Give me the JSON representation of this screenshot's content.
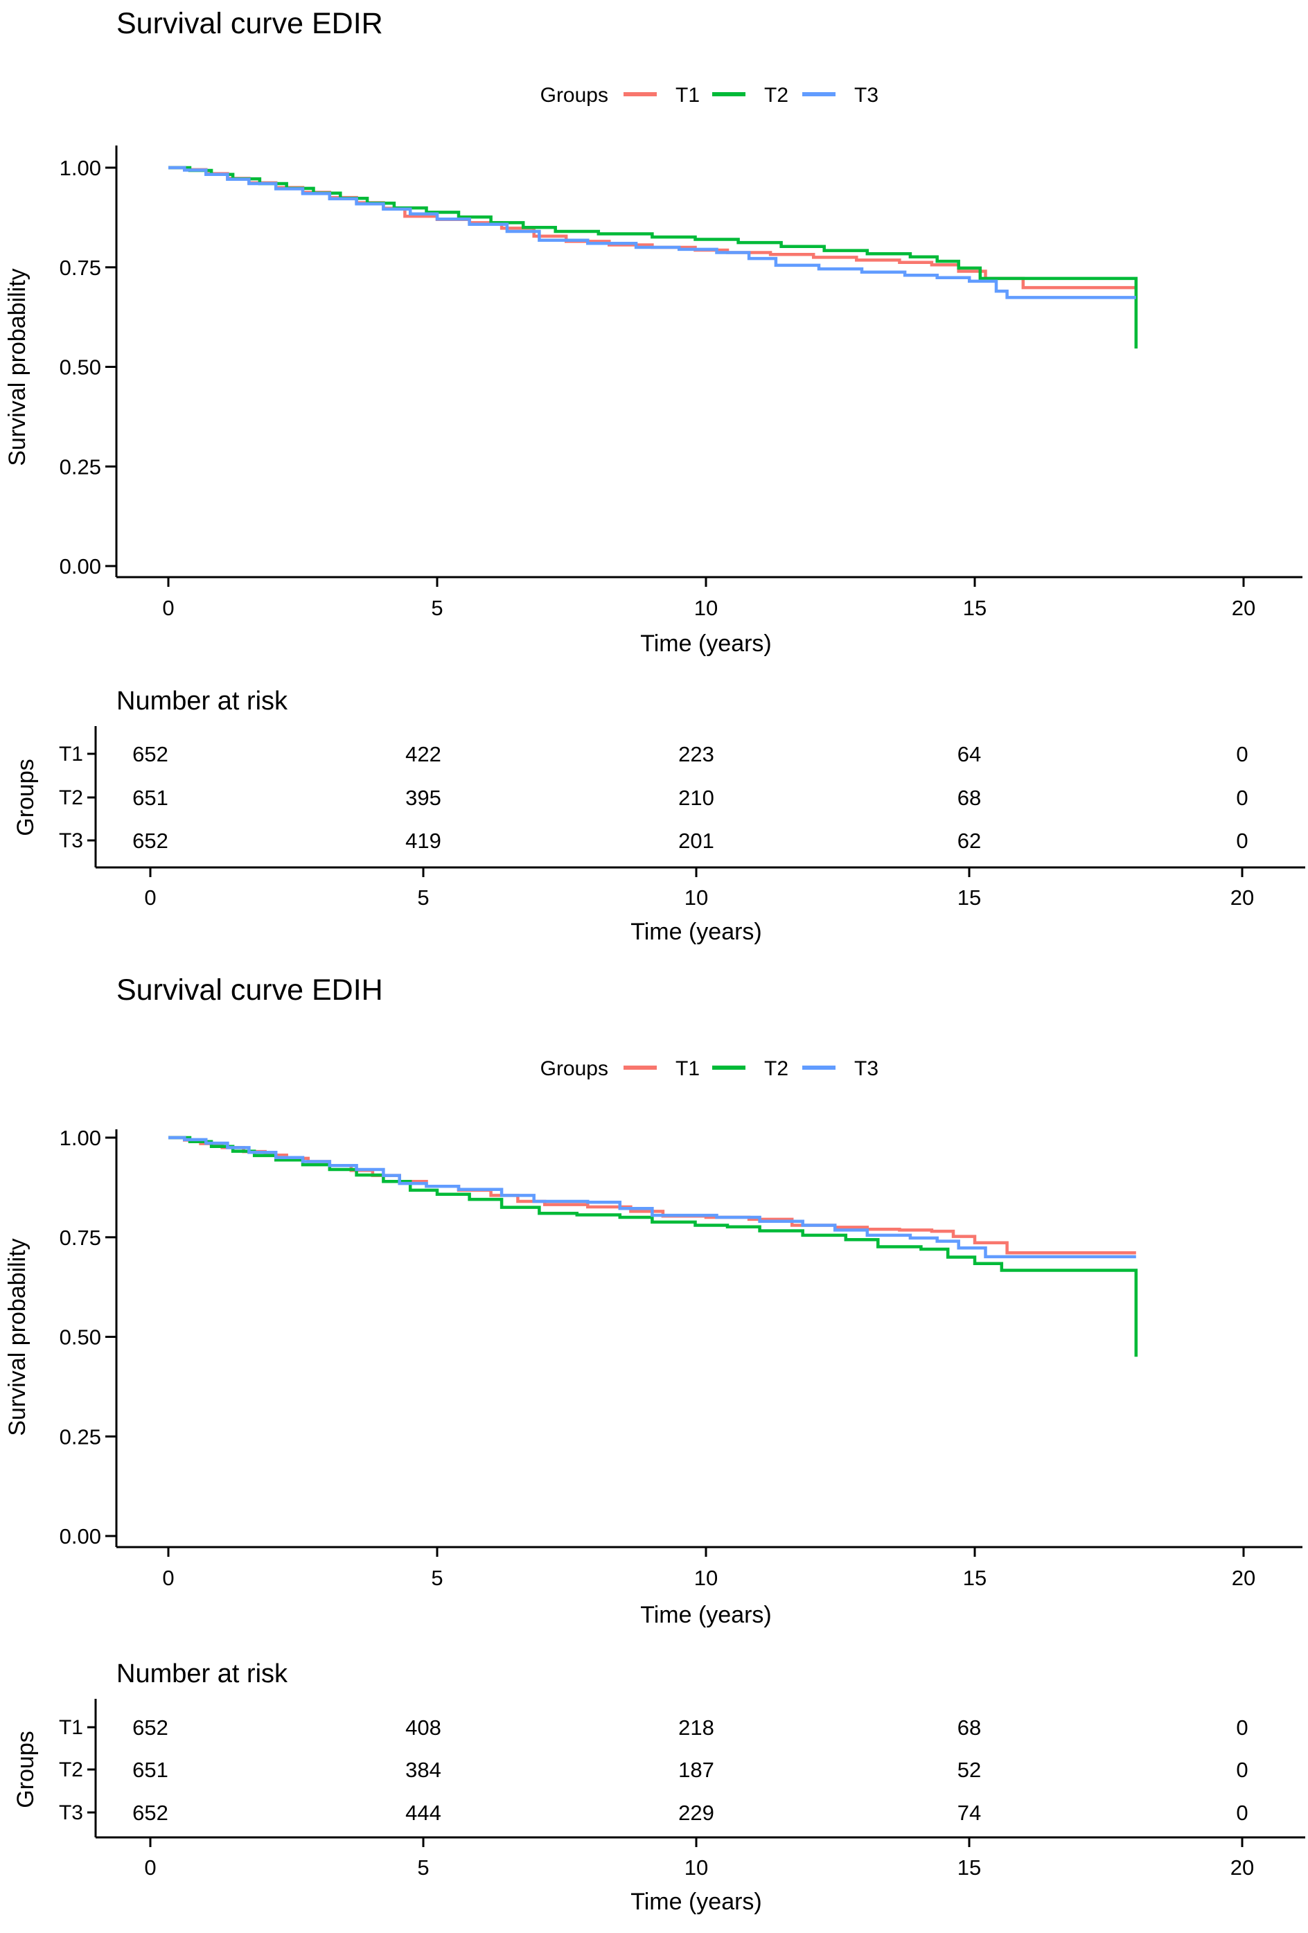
{
  "colors": {
    "t1": "#F8766D",
    "t2": "#00BA38",
    "t3": "#619CFF",
    "axis": "#000000",
    "text": "#000000"
  },
  "chart_data": [
    {
      "type": "line",
      "title": "Survival curve EDIR",
      "legend_title": "Groups",
      "legend_position": "top",
      "xlabel": "Time (years)",
      "ylabel": "Survival probability",
      "xlim": [
        0,
        20
      ],
      "ylim": [
        0,
        1
      ],
      "grid": false,
      "xticks": [
        "0",
        "5",
        "10",
        "15",
        "20"
      ],
      "yticks": [
        "1.00",
        "0.75",
        "0.50",
        "0.25",
        "0.00"
      ],
      "series": [
        {
          "name": "T1",
          "color": "#F8766D",
          "points": [
            [
              0,
              1
            ],
            [
              0.3,
              0.995
            ],
            [
              0.7,
              0.985
            ],
            [
              1.1,
              0.973
            ],
            [
              1.5,
              0.962
            ],
            [
              2,
              0.95
            ],
            [
              2.5,
              0.938
            ],
            [
              3,
              0.925
            ],
            [
              3.5,
              0.912
            ],
            [
              4,
              0.898
            ],
            [
              4.4,
              0.878
            ],
            [
              5,
              0.87
            ],
            [
              5.6,
              0.862
            ],
            [
              6.2,
              0.848
            ],
            [
              6.8,
              0.828
            ],
            [
              7.4,
              0.815
            ],
            [
              8.2,
              0.806
            ],
            [
              9,
              0.8
            ],
            [
              9.8,
              0.793
            ],
            [
              10.4,
              0.787
            ],
            [
              11.2,
              0.782
            ],
            [
              12,
              0.775
            ],
            [
              12.8,
              0.768
            ],
            [
              13.6,
              0.762
            ],
            [
              14.2,
              0.756
            ],
            [
              14.7,
              0.74
            ],
            [
              15.2,
              0.722
            ],
            [
              15.9,
              0.699
            ],
            [
              18,
              0.699
            ]
          ]
        },
        {
          "name": "T2",
          "color": "#00BA38",
          "points": [
            [
              0,
              1
            ],
            [
              0.4,
              0.993
            ],
            [
              0.8,
              0.983
            ],
            [
              1.2,
              0.972
            ],
            [
              1.7,
              0.96
            ],
            [
              2.2,
              0.948
            ],
            [
              2.7,
              0.936
            ],
            [
              3.2,
              0.923
            ],
            [
              3.7,
              0.911
            ],
            [
              4.2,
              0.899
            ],
            [
              4.8,
              0.888
            ],
            [
              5.4,
              0.876
            ],
            [
              6,
              0.862
            ],
            [
              6.6,
              0.85
            ],
            [
              7.2,
              0.84
            ],
            [
              8,
              0.834
            ],
            [
              9,
              0.826
            ],
            [
              9.8,
              0.82
            ],
            [
              10.6,
              0.812
            ],
            [
              11.4,
              0.802
            ],
            [
              12.2,
              0.792
            ],
            [
              13,
              0.784
            ],
            [
              13.8,
              0.776
            ],
            [
              14.3,
              0.765
            ],
            [
              14.7,
              0.748
            ],
            [
              15.1,
              0.722
            ],
            [
              18,
              0.722
            ],
            [
              18,
              0.546
            ]
          ]
        },
        {
          "name": "T3",
          "color": "#619CFF",
          "points": [
            [
              0,
              1
            ],
            [
              0.3,
              0.994
            ],
            [
              0.7,
              0.983
            ],
            [
              1.1,
              0.971
            ],
            [
              1.5,
              0.96
            ],
            [
              2,
              0.947
            ],
            [
              2.5,
              0.935
            ],
            [
              3,
              0.922
            ],
            [
              3.5,
              0.909
            ],
            [
              4,
              0.896
            ],
            [
              4.5,
              0.884
            ],
            [
              5,
              0.871
            ],
            [
              5.6,
              0.858
            ],
            [
              6.3,
              0.84
            ],
            [
              6.9,
              0.818
            ],
            [
              7.8,
              0.81
            ],
            [
              8.7,
              0.8
            ],
            [
              9.5,
              0.795
            ],
            [
              10.2,
              0.787
            ],
            [
              10.8,
              0.772
            ],
            [
              11.3,
              0.755
            ],
            [
              12.1,
              0.746
            ],
            [
              12.9,
              0.738
            ],
            [
              13.7,
              0.73
            ],
            [
              14.3,
              0.724
            ],
            [
              14.9,
              0.715
            ],
            [
              15.4,
              0.69
            ],
            [
              15.6,
              0.674
            ],
            [
              18,
              0.674
            ]
          ]
        }
      ],
      "risk_table": {
        "title": "Number at risk",
        "ylabel": "Groups",
        "xlabel": "Time (years)",
        "times": [
          "0",
          "5",
          "10",
          "15",
          "20"
        ],
        "rows": [
          {
            "label": "T1",
            "color": "#F8766D",
            "values": [
              652,
              422,
              223,
              64,
              0
            ]
          },
          {
            "label": "T2",
            "color": "#00BA38",
            "values": [
              651,
              395,
              210,
              68,
              0
            ]
          },
          {
            "label": "T3",
            "color": "#619CFF",
            "values": [
              652,
              419,
              201,
              62,
              0
            ]
          }
        ]
      }
    },
    {
      "type": "line",
      "title": "Survival curve EDIH",
      "legend_title": "Groups",
      "legend_position": "top",
      "xlabel": "Time (years)",
      "ylabel": "Survival probability",
      "xlim": [
        0,
        20
      ],
      "ylim": [
        0,
        1
      ],
      "grid": false,
      "xticks": [
        "0",
        "5",
        "10",
        "15",
        "20"
      ],
      "yticks": [
        "1.00",
        "0.75",
        "0.50",
        "0.25",
        "0.00"
      ],
      "series": [
        {
          "name": "T1",
          "color": "#F8766D",
          "points": [
            [
              0,
              1
            ],
            [
              0.3,
              0.994
            ],
            [
              0.6,
              0.985
            ],
            [
              1,
              0.975
            ],
            [
              1.4,
              0.965
            ],
            [
              1.8,
              0.956
            ],
            [
              2.2,
              0.948
            ],
            [
              2.6,
              0.94
            ],
            [
              3,
              0.93
            ],
            [
              3.4,
              0.918
            ],
            [
              3.8,
              0.905
            ],
            [
              4.3,
              0.89
            ],
            [
              4.8,
              0.878
            ],
            [
              5.4,
              0.868
            ],
            [
              6,
              0.855
            ],
            [
              6.5,
              0.84
            ],
            [
              7,
              0.832
            ],
            [
              7.8,
              0.826
            ],
            [
              8.6,
              0.815
            ],
            [
              9.2,
              0.803
            ],
            [
              10,
              0.8
            ],
            [
              10.8,
              0.795
            ],
            [
              11.6,
              0.78
            ],
            [
              12.4,
              0.775
            ],
            [
              13,
              0.77
            ],
            [
              13.6,
              0.768
            ],
            [
              14.2,
              0.765
            ],
            [
              14.6,
              0.752
            ],
            [
              15,
              0.736
            ],
            [
              15.6,
              0.711
            ],
            [
              18,
              0.711
            ]
          ]
        },
        {
          "name": "T2",
          "color": "#00BA38",
          "points": [
            [
              0,
              1
            ],
            [
              0.4,
              0.99
            ],
            [
              0.8,
              0.978
            ],
            [
              1.2,
              0.966
            ],
            [
              1.6,
              0.955
            ],
            [
              2,
              0.944
            ],
            [
              2.5,
              0.932
            ],
            [
              3,
              0.92
            ],
            [
              3.5,
              0.906
            ],
            [
              4,
              0.89
            ],
            [
              4.5,
              0.868
            ],
            [
              5,
              0.858
            ],
            [
              5.6,
              0.845
            ],
            [
              6.2,
              0.825
            ],
            [
              6.9,
              0.81
            ],
            [
              7.6,
              0.806
            ],
            [
              8.4,
              0.8
            ],
            [
              9,
              0.788
            ],
            [
              9.8,
              0.78
            ],
            [
              10.4,
              0.776
            ],
            [
              11,
              0.766
            ],
            [
              11.8,
              0.755
            ],
            [
              12.6,
              0.744
            ],
            [
              13.2,
              0.726
            ],
            [
              14,
              0.72
            ],
            [
              14.5,
              0.7
            ],
            [
              15,
              0.684
            ],
            [
              15.5,
              0.667
            ],
            [
              18,
              0.667
            ],
            [
              18,
              0.45
            ]
          ]
        },
        {
          "name": "T3",
          "color": "#619CFF",
          "points": [
            [
              0,
              1
            ],
            [
              0.3,
              0.995
            ],
            [
              0.7,
              0.986
            ],
            [
              1.1,
              0.975
            ],
            [
              1.5,
              0.963
            ],
            [
              2,
              0.95
            ],
            [
              2.5,
              0.94
            ],
            [
              3,
              0.93
            ],
            [
              3.5,
              0.92
            ],
            [
              4,
              0.905
            ],
            [
              4.3,
              0.885
            ],
            [
              4.8,
              0.878
            ],
            [
              5.4,
              0.87
            ],
            [
              6.2,
              0.855
            ],
            [
              6.8,
              0.84
            ],
            [
              7.8,
              0.838
            ],
            [
              8.4,
              0.822
            ],
            [
              9,
              0.805
            ],
            [
              10.2,
              0.8
            ],
            [
              11,
              0.79
            ],
            [
              11.8,
              0.78
            ],
            [
              12.4,
              0.768
            ],
            [
              13,
              0.755
            ],
            [
              13.8,
              0.748
            ],
            [
              14.3,
              0.74
            ],
            [
              14.7,
              0.723
            ],
            [
              15.2,
              0.701
            ],
            [
              18,
              0.701
            ]
          ]
        }
      ],
      "risk_table": {
        "title": "Number at risk",
        "ylabel": "Groups",
        "xlabel": "Time (years)",
        "times": [
          "0",
          "5",
          "10",
          "15",
          "20"
        ],
        "rows": [
          {
            "label": "T1",
            "color": "#F8766D",
            "values": [
              652,
              408,
              218,
              68,
              0
            ]
          },
          {
            "label": "T2",
            "color": "#00BA38",
            "values": [
              651,
              384,
              187,
              52,
              0
            ]
          },
          {
            "label": "T3",
            "color": "#619CFF",
            "values": [
              652,
              444,
              229,
              74,
              0
            ]
          }
        ]
      }
    }
  ]
}
